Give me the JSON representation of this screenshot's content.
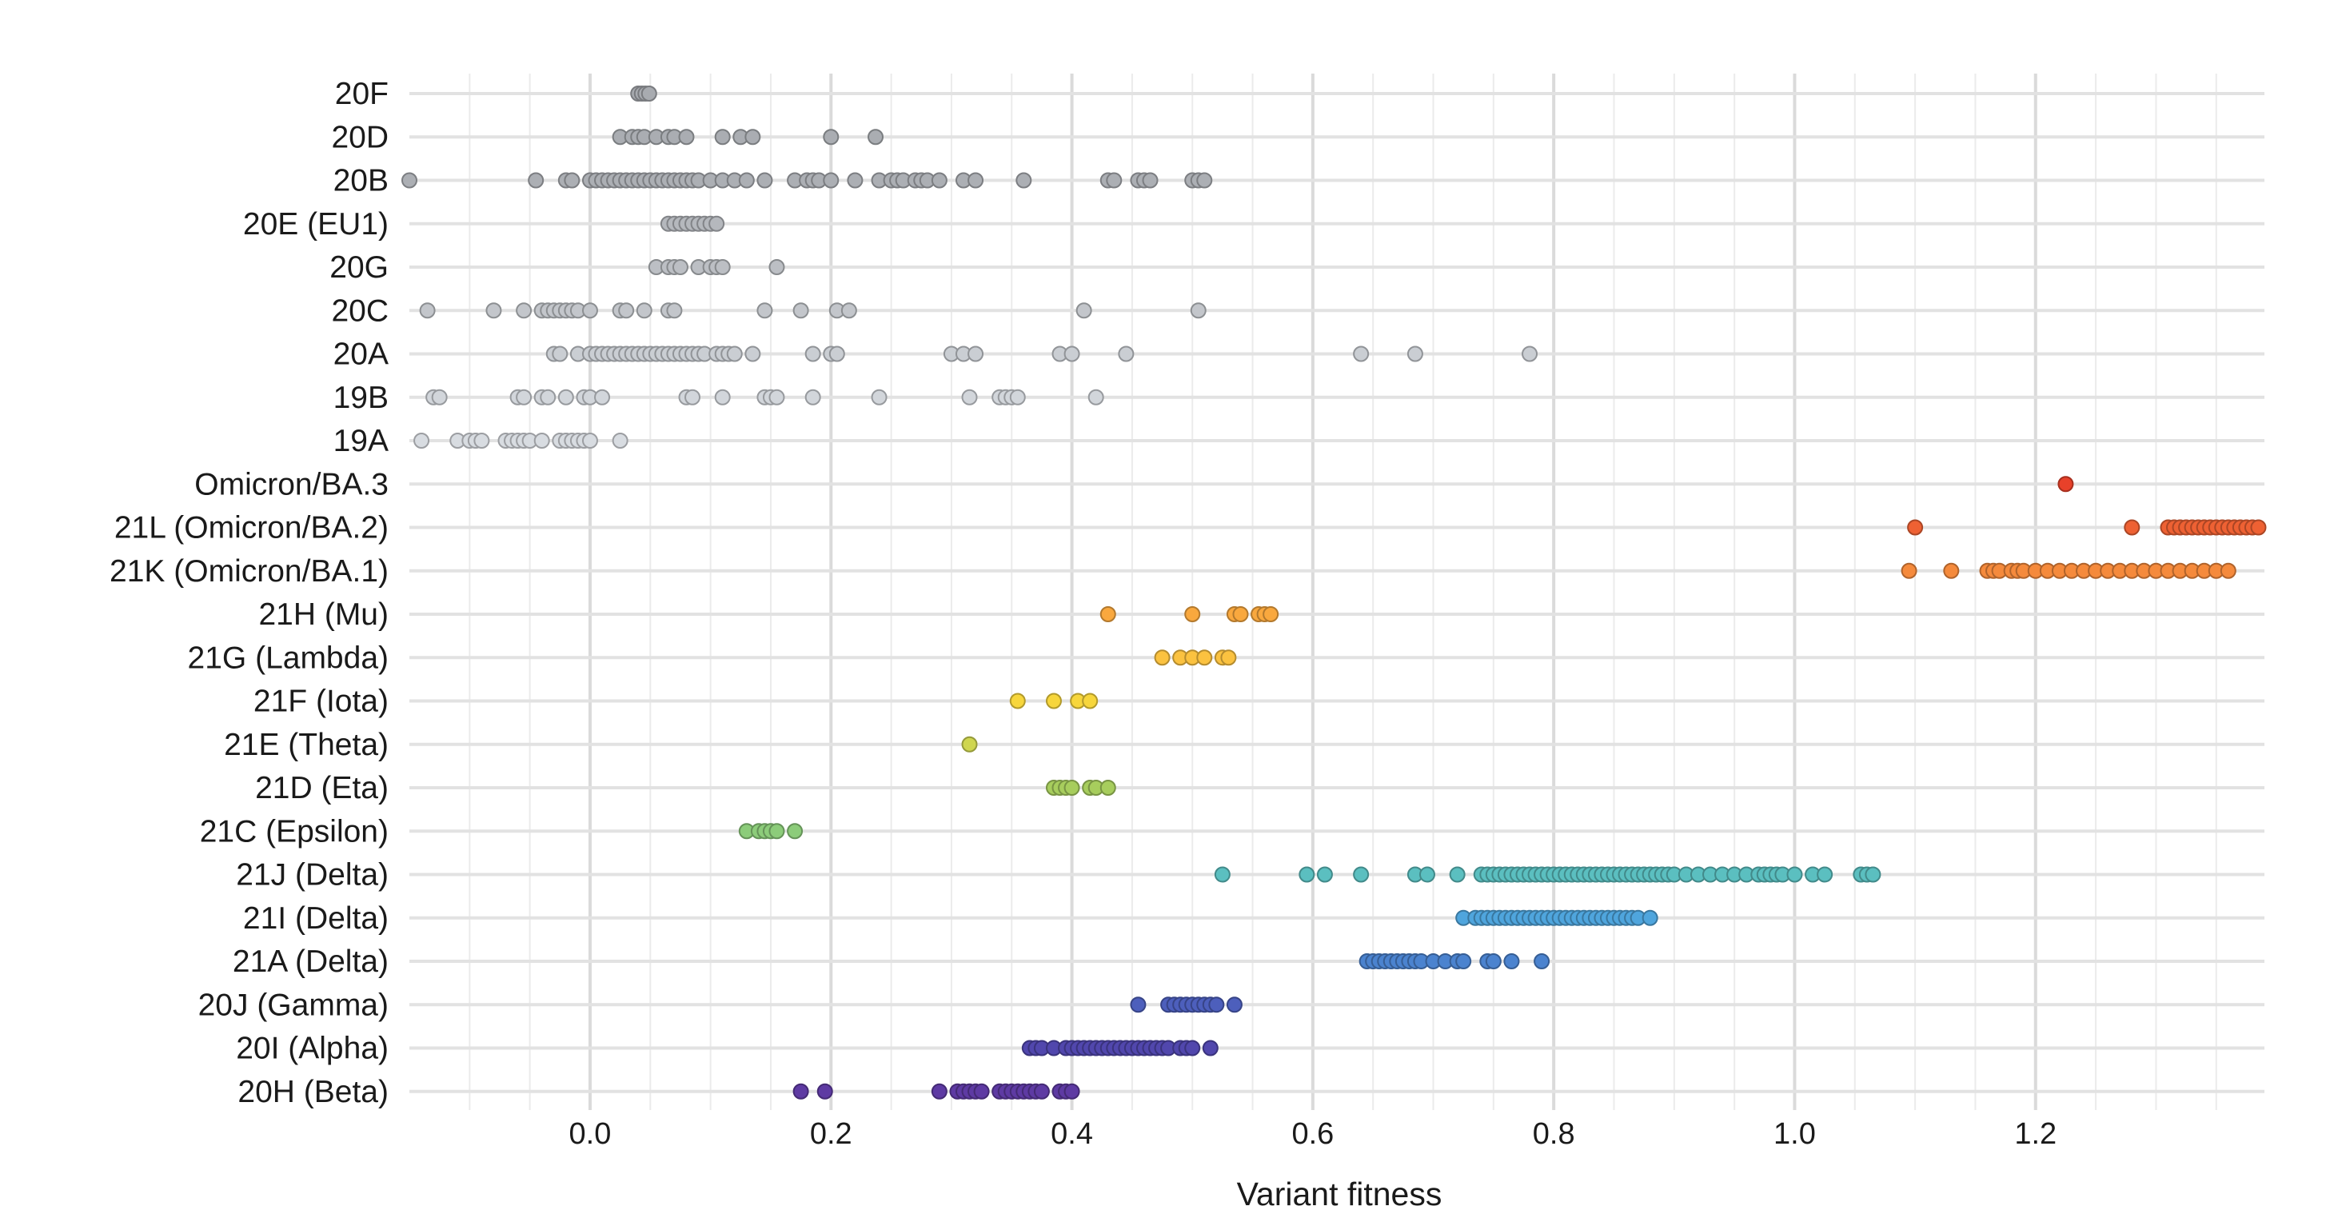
{
  "chart_data": {
    "type": "scatter",
    "title": "",
    "xlabel": "Variant fitness",
    "ylabel": "",
    "xlim": [
      -0.15,
      1.39
    ],
    "xticks": [
      0.0,
      0.2,
      0.4,
      0.6,
      0.8,
      1.0,
      1.2
    ],
    "xtick_labels": [
      "0.0",
      "0.2",
      "0.4",
      "0.6",
      "0.8",
      "1.0",
      "1.2"
    ],
    "grid": true,
    "legend": "none",
    "series": [
      {
        "name": "20F",
        "color": "#a8abb0",
        "values": [
          0.04,
          0.043,
          0.046,
          0.049
        ]
      },
      {
        "name": "20D",
        "color": "#aaadb2",
        "values": [
          0.025,
          0.035,
          0.04,
          0.045,
          0.055,
          0.065,
          0.07,
          0.08,
          0.11,
          0.125,
          0.135,
          0.2,
          0.237
        ]
      },
      {
        "name": "20B",
        "color": "#acafb4",
        "values": [
          -0.15,
          -0.045,
          -0.02,
          -0.015,
          0.0,
          0.005,
          0.01,
          0.015,
          0.02,
          0.025,
          0.03,
          0.035,
          0.04,
          0.045,
          0.05,
          0.055,
          0.06,
          0.065,
          0.07,
          0.075,
          0.08,
          0.085,
          0.09,
          0.1,
          0.11,
          0.12,
          0.13,
          0.145,
          0.17,
          0.18,
          0.185,
          0.19,
          0.2,
          0.22,
          0.24,
          0.25,
          0.255,
          0.26,
          0.27,
          0.275,
          0.28,
          0.29,
          0.31,
          0.32,
          0.36,
          0.43,
          0.435,
          0.455,
          0.46,
          0.465,
          0.5,
          0.505,
          0.51
        ]
      },
      {
        "name": "20E (EU1)",
        "color": "#b5b8bd",
        "values": [
          0.065,
          0.07,
          0.075,
          0.08,
          0.085,
          0.09,
          0.095,
          0.1,
          0.105
        ]
      },
      {
        "name": "20G",
        "color": "#bcbfc4",
        "values": [
          0.055,
          0.065,
          0.07,
          0.075,
          0.09,
          0.1,
          0.105,
          0.11,
          0.155
        ]
      },
      {
        "name": "20C",
        "color": "#c3c6cb",
        "values": [
          -0.135,
          -0.08,
          -0.055,
          -0.04,
          -0.035,
          -0.03,
          -0.025,
          -0.02,
          -0.015,
          -0.01,
          0.0,
          0.025,
          0.03,
          0.045,
          0.065,
          0.07,
          0.145,
          0.175,
          0.205,
          0.215,
          0.41,
          0.505
        ]
      },
      {
        "name": "20A",
        "color": "#caced3",
        "values": [
          -0.03,
          -0.025,
          -0.01,
          0.0,
          0.005,
          0.01,
          0.015,
          0.02,
          0.025,
          0.03,
          0.035,
          0.04,
          0.045,
          0.05,
          0.055,
          0.06,
          0.065,
          0.07,
          0.075,
          0.08,
          0.085,
          0.09,
          0.095,
          0.105,
          0.11,
          0.115,
          0.12,
          0.135,
          0.185,
          0.2,
          0.205,
          0.3,
          0.31,
          0.32,
          0.39,
          0.4,
          0.445,
          0.64,
          0.685,
          0.78
        ]
      },
      {
        "name": "19B",
        "color": "#d2d6db",
        "values": [
          -0.13,
          -0.125,
          -0.06,
          -0.055,
          -0.04,
          -0.035,
          -0.02,
          -0.005,
          0.0,
          0.01,
          0.08,
          0.085,
          0.11,
          0.145,
          0.15,
          0.155,
          0.185,
          0.24,
          0.315,
          0.34,
          0.345,
          0.35,
          0.355,
          0.42
        ]
      },
      {
        "name": "19A",
        "color": "#d8dce1",
        "values": [
          -0.14,
          -0.11,
          -0.1,
          -0.095,
          -0.09,
          -0.07,
          -0.065,
          -0.06,
          -0.055,
          -0.05,
          -0.04,
          -0.025,
          -0.02,
          -0.015,
          -0.01,
          -0.005,
          0.0,
          0.025
        ]
      },
      {
        "name": "Omicron/BA.3",
        "color": "#e8412a",
        "values": [
          1.225
        ]
      },
      {
        "name": "21L (Omicron/BA.2)",
        "color": "#ee6133",
        "values": [
          1.1,
          1.28,
          1.31,
          1.315,
          1.32,
          1.325,
          1.33,
          1.335,
          1.34,
          1.345,
          1.35,
          1.355,
          1.36,
          1.365,
          1.37,
          1.375,
          1.38,
          1.385
        ]
      },
      {
        "name": "21K (Omicron/BA.1)",
        "color": "#f58a3c",
        "values": [
          1.095,
          1.13,
          1.16,
          1.165,
          1.17,
          1.18,
          1.185,
          1.19,
          1.2,
          1.21,
          1.22,
          1.23,
          1.24,
          1.25,
          1.26,
          1.27,
          1.28,
          1.29,
          1.3,
          1.31,
          1.32,
          1.33,
          1.34,
          1.35,
          1.36
        ]
      },
      {
        "name": "21H (Mu)",
        "color": "#f9a83e",
        "values": [
          0.43,
          0.5,
          0.535,
          0.54,
          0.555,
          0.56,
          0.565
        ]
      },
      {
        "name": "21G (Lambda)",
        "color": "#fbc240",
        "values": [
          0.475,
          0.49,
          0.5,
          0.51,
          0.525,
          0.53
        ]
      },
      {
        "name": "21F (Iota)",
        "color": "#f7d63c",
        "values": [
          0.355,
          0.385,
          0.405,
          0.415
        ]
      },
      {
        "name": "21E (Theta)",
        "color": "#cfd650",
        "values": [
          0.315
        ]
      },
      {
        "name": "21D (Eta)",
        "color": "#a7cd5d",
        "values": [
          0.385,
          0.39,
          0.395,
          0.4,
          0.415,
          0.42,
          0.43
        ]
      },
      {
        "name": "21C (Epsilon)",
        "color": "#8ccc7a",
        "values": [
          0.13,
          0.14,
          0.145,
          0.15,
          0.155,
          0.17
        ]
      },
      {
        "name": "21J (Delta)",
        "color": "#5bbfc0",
        "values": [
          0.525,
          0.595,
          0.61,
          0.64,
          0.685,
          0.695,
          0.72,
          0.74,
          0.745,
          0.75,
          0.755,
          0.76,
          0.765,
          0.77,
          0.775,
          0.78,
          0.785,
          0.79,
          0.795,
          0.8,
          0.805,
          0.81,
          0.815,
          0.82,
          0.825,
          0.83,
          0.835,
          0.84,
          0.845,
          0.85,
          0.855,
          0.86,
          0.865,
          0.87,
          0.875,
          0.88,
          0.885,
          0.89,
          0.895,
          0.9,
          0.91,
          0.92,
          0.93,
          0.94,
          0.95,
          0.96,
          0.97,
          0.975,
          0.98,
          0.985,
          0.99,
          1.0,
          1.015,
          1.025,
          1.055,
          1.06,
          1.065
        ]
      },
      {
        "name": "21I (Delta)",
        "color": "#4fa5dd",
        "values": [
          0.725,
          0.735,
          0.74,
          0.745,
          0.75,
          0.755,
          0.76,
          0.765,
          0.77,
          0.775,
          0.78,
          0.785,
          0.79,
          0.795,
          0.8,
          0.805,
          0.81,
          0.815,
          0.82,
          0.825,
          0.83,
          0.835,
          0.84,
          0.845,
          0.85,
          0.855,
          0.86,
          0.865,
          0.87,
          0.88
        ]
      },
      {
        "name": "21A (Delta)",
        "color": "#4b83cf",
        "values": [
          0.645,
          0.65,
          0.655,
          0.66,
          0.665,
          0.67,
          0.675,
          0.68,
          0.685,
          0.69,
          0.7,
          0.71,
          0.72,
          0.725,
          0.745,
          0.75,
          0.765,
          0.79
        ]
      },
      {
        "name": "20J (Gamma)",
        "color": "#4d5fbc",
        "values": [
          0.455,
          0.48,
          0.485,
          0.49,
          0.495,
          0.5,
          0.505,
          0.51,
          0.515,
          0.52,
          0.535
        ]
      },
      {
        "name": "20I (Alpha)",
        "color": "#5147ad",
        "values": [
          0.365,
          0.37,
          0.375,
          0.385,
          0.395,
          0.4,
          0.405,
          0.41,
          0.415,
          0.42,
          0.425,
          0.43,
          0.435,
          0.44,
          0.445,
          0.45,
          0.455,
          0.46,
          0.465,
          0.47,
          0.475,
          0.48,
          0.49,
          0.495,
          0.5,
          0.515
        ]
      },
      {
        "name": "20H (Beta)",
        "color": "#5e3aa3",
        "values": [
          0.175,
          0.195,
          0.29,
          0.305,
          0.31,
          0.315,
          0.32,
          0.325,
          0.34,
          0.345,
          0.35,
          0.355,
          0.36,
          0.365,
          0.37,
          0.375,
          0.39,
          0.395,
          0.4
        ]
      }
    ]
  }
}
